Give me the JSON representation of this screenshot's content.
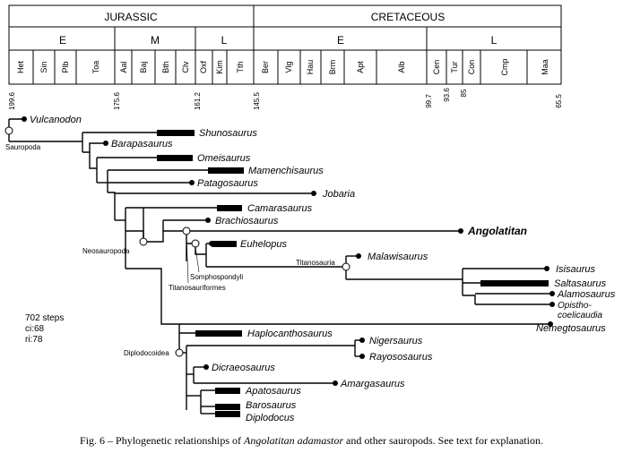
{
  "timescale": {
    "periods": [
      "JURASSIC",
      "CRETACEOUS"
    ],
    "epochs": [
      "E",
      "M",
      "L",
      "E",
      "L"
    ],
    "stages": [
      "Het",
      "Sin",
      "Plb",
      "Toa",
      "Aal",
      "Baj",
      "Bth",
      "Clv",
      "Oxf",
      "Kim",
      "Tth",
      "Ber",
      "Vlg",
      "Hau",
      "Brm",
      "Apt",
      "Alb",
      "Cen",
      "Tur",
      "Con",
      "Cmp",
      "Maa"
    ],
    "ages": [
      "199.6",
      "175.6",
      "161.2",
      "145.5",
      "99.7",
      "93.6",
      "85",
      "65.5"
    ]
  },
  "taxa": {
    "vulcanodon": "Vulcanodon",
    "shunosaurus": "Shunosaurus",
    "barapasaurus": "Barapasaurus",
    "omeisaurus": "Omeisaurus",
    "mamenchisaurus": "Mamenchisaurus",
    "patagosaurus": "Patagosaurus",
    "jobaria": "Jobaria",
    "camarasaurus": "Camarasaurus",
    "brachiosaurus": "Brachiosaurus",
    "angolatitan": "Angolatitan",
    "euhelopus": "Euhelopus",
    "malawisaurus": "Malawisaurus",
    "isisaurus": "Isisaurus",
    "saltasaurus": "Saltasaurus",
    "alamosaurus": "Alamosaurus",
    "opisthocoelicaudia_1": "Opistho-",
    "opisthocoelicaudia_2": "coelicaudia",
    "nemegtosaurus": "Nemegtosaurus",
    "haplocanthosaurus": "Haplocanthosaurus",
    "nigersaurus": "Nigersaurus",
    "rayososaurus": "Rayososaurus",
    "dicraeosaurus": "Dicraeosaurus",
    "amargasaurus": "Amargasaurus",
    "apatosaurus": "Apatosaurus",
    "barosaurus": "Barosaurus",
    "diplodocus": "Diplodocus"
  },
  "clades": {
    "sauropoda": "Sauropoda",
    "neosauropoda": "Neosauropoda",
    "titanosauria": "Titanosauria",
    "somphospondyli": "Somphospondyli",
    "titanosauriformes": "Titanosauriformes",
    "diplodocoidea": "Diplodocoidea"
  },
  "stats": {
    "steps": "702 steps",
    "ci": "ci:68",
    "ri": "ri:78"
  },
  "caption": {
    "prefix": "Fig. 6 – Phylogenetic relationships of ",
    "species": "Angolatitan adamastor",
    "suffix": " and other sauropods. See text for explanation."
  }
}
